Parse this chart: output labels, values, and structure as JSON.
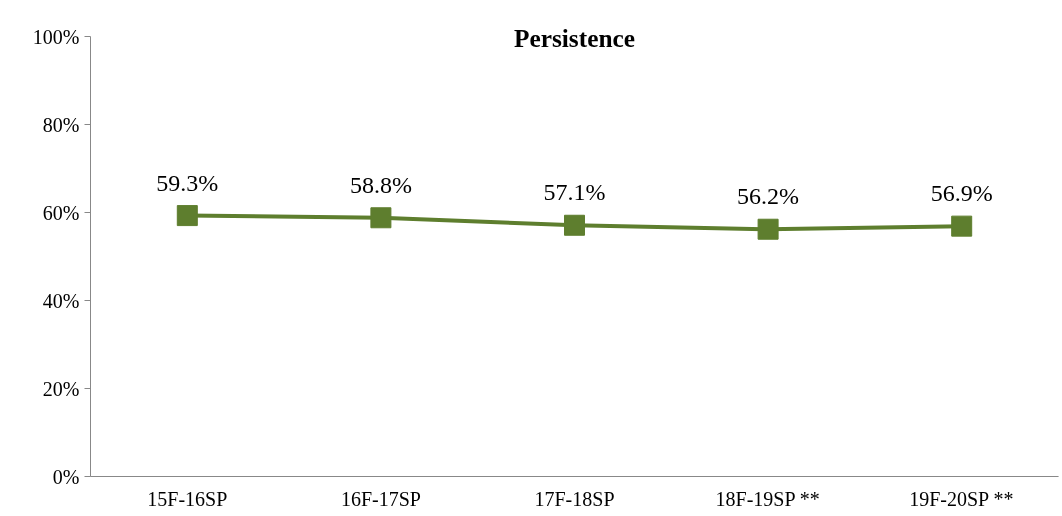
{
  "chart_data": {
    "type": "line",
    "title": "Persistence",
    "categories": [
      "15F-16SP",
      "16F-17SP",
      "17F-18SP",
      "18F-19SP **",
      "19F-20SP **"
    ],
    "series": [
      {
        "color": "#5e7e2e",
        "values": [
          59.3,
          58.8,
          57.1,
          56.2,
          56.9
        ]
      }
    ],
    "value_labels": [
      "59.3%",
      "58.8%",
      "57.1%",
      "56.2%",
      "56.9%"
    ],
    "ylim": [
      0,
      100
    ],
    "yticks": [
      {
        "value": 0,
        "label": "0%"
      },
      {
        "value": 20,
        "label": "20%"
      },
      {
        "value": 40,
        "label": "40%"
      },
      {
        "value": 60,
        "label": "60%"
      },
      {
        "value": 80,
        "label": "80%"
      },
      {
        "value": 100,
        "label": "100%"
      }
    ],
    "marker": "square",
    "line_style": "solid",
    "grid": false
  }
}
